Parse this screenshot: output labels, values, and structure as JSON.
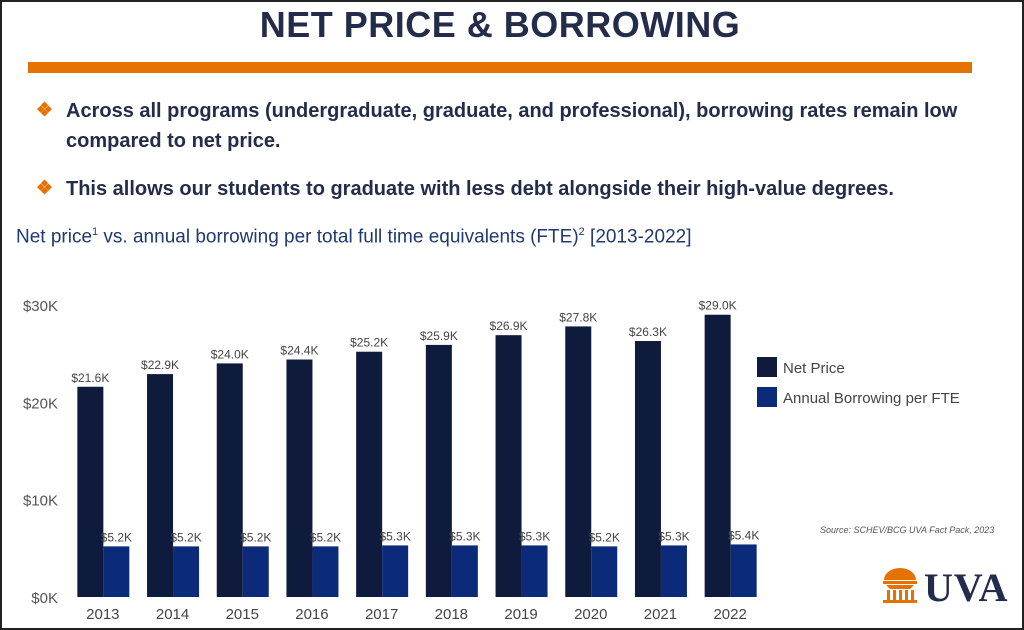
{
  "title": "NET PRICE & BORROWING",
  "bullets": [
    {
      "icon": "diamond-bullet-icon",
      "text": "Across all programs (undergraduate, graduate, and professional), borrowing rates remain low compared to net price."
    },
    {
      "icon": "diamond-bullet-icon",
      "text": "This allows our students to graduate with less debt alongside their high-value degrees."
    }
  ],
  "subtitle": {
    "part1": "Net price",
    "sup1": "1",
    "part2": " vs. annual borrowing per total full time equivalents (FTE)",
    "sup2": "2",
    "part3": " [2013-2022]"
  },
  "source": "Source:  SCHEV/BCG UVA Fact Pack, 2023",
  "logo": {
    "text": "UVA",
    "icon": "rotunda-icon"
  },
  "colors": {
    "accent": "#e57200",
    "navy": "#232d4b",
    "net_price": "#0f1b3d",
    "borrowing": "#0c2a7a"
  },
  "chart_data": {
    "type": "bar",
    "categories": [
      "2013",
      "2014",
      "2015",
      "2016",
      "2017",
      "2018",
      "2019",
      "2020",
      "2021",
      "2022"
    ],
    "series": [
      {
        "name": "Net Price",
        "color": "#0f1b3d",
        "values": [
          21.6,
          22.9,
          24.0,
          24.4,
          25.2,
          25.9,
          26.9,
          27.8,
          26.3,
          29.0
        ],
        "labels": [
          "$21.6K",
          "$22.9K",
          "$24.0K",
          "$24.4K",
          "$25.2K",
          "$25.9K",
          "$26.9K",
          "$27.8K",
          "$26.3K",
          "$29.0K"
        ]
      },
      {
        "name": "Annual Borrowing per FTE",
        "color": "#0c2a7a",
        "values": [
          5.2,
          5.2,
          5.2,
          5.2,
          5.3,
          5.3,
          5.3,
          5.2,
          5.3,
          5.4
        ],
        "labels": [
          "$5.2K",
          "$5.2K",
          "$5.2K",
          "$5.2K",
          "$5.3K",
          "$5.3K",
          "$5.3K",
          "$5.2K",
          "$5.3K",
          "$5.4K"
        ]
      }
    ],
    "yticks": [
      0,
      10,
      20,
      30
    ],
    "ytick_labels": [
      "$0K",
      "$10K",
      "$20K",
      "$30K"
    ],
    "ylim": [
      0,
      30
    ],
    "legend_position": "right",
    "grid": false
  }
}
